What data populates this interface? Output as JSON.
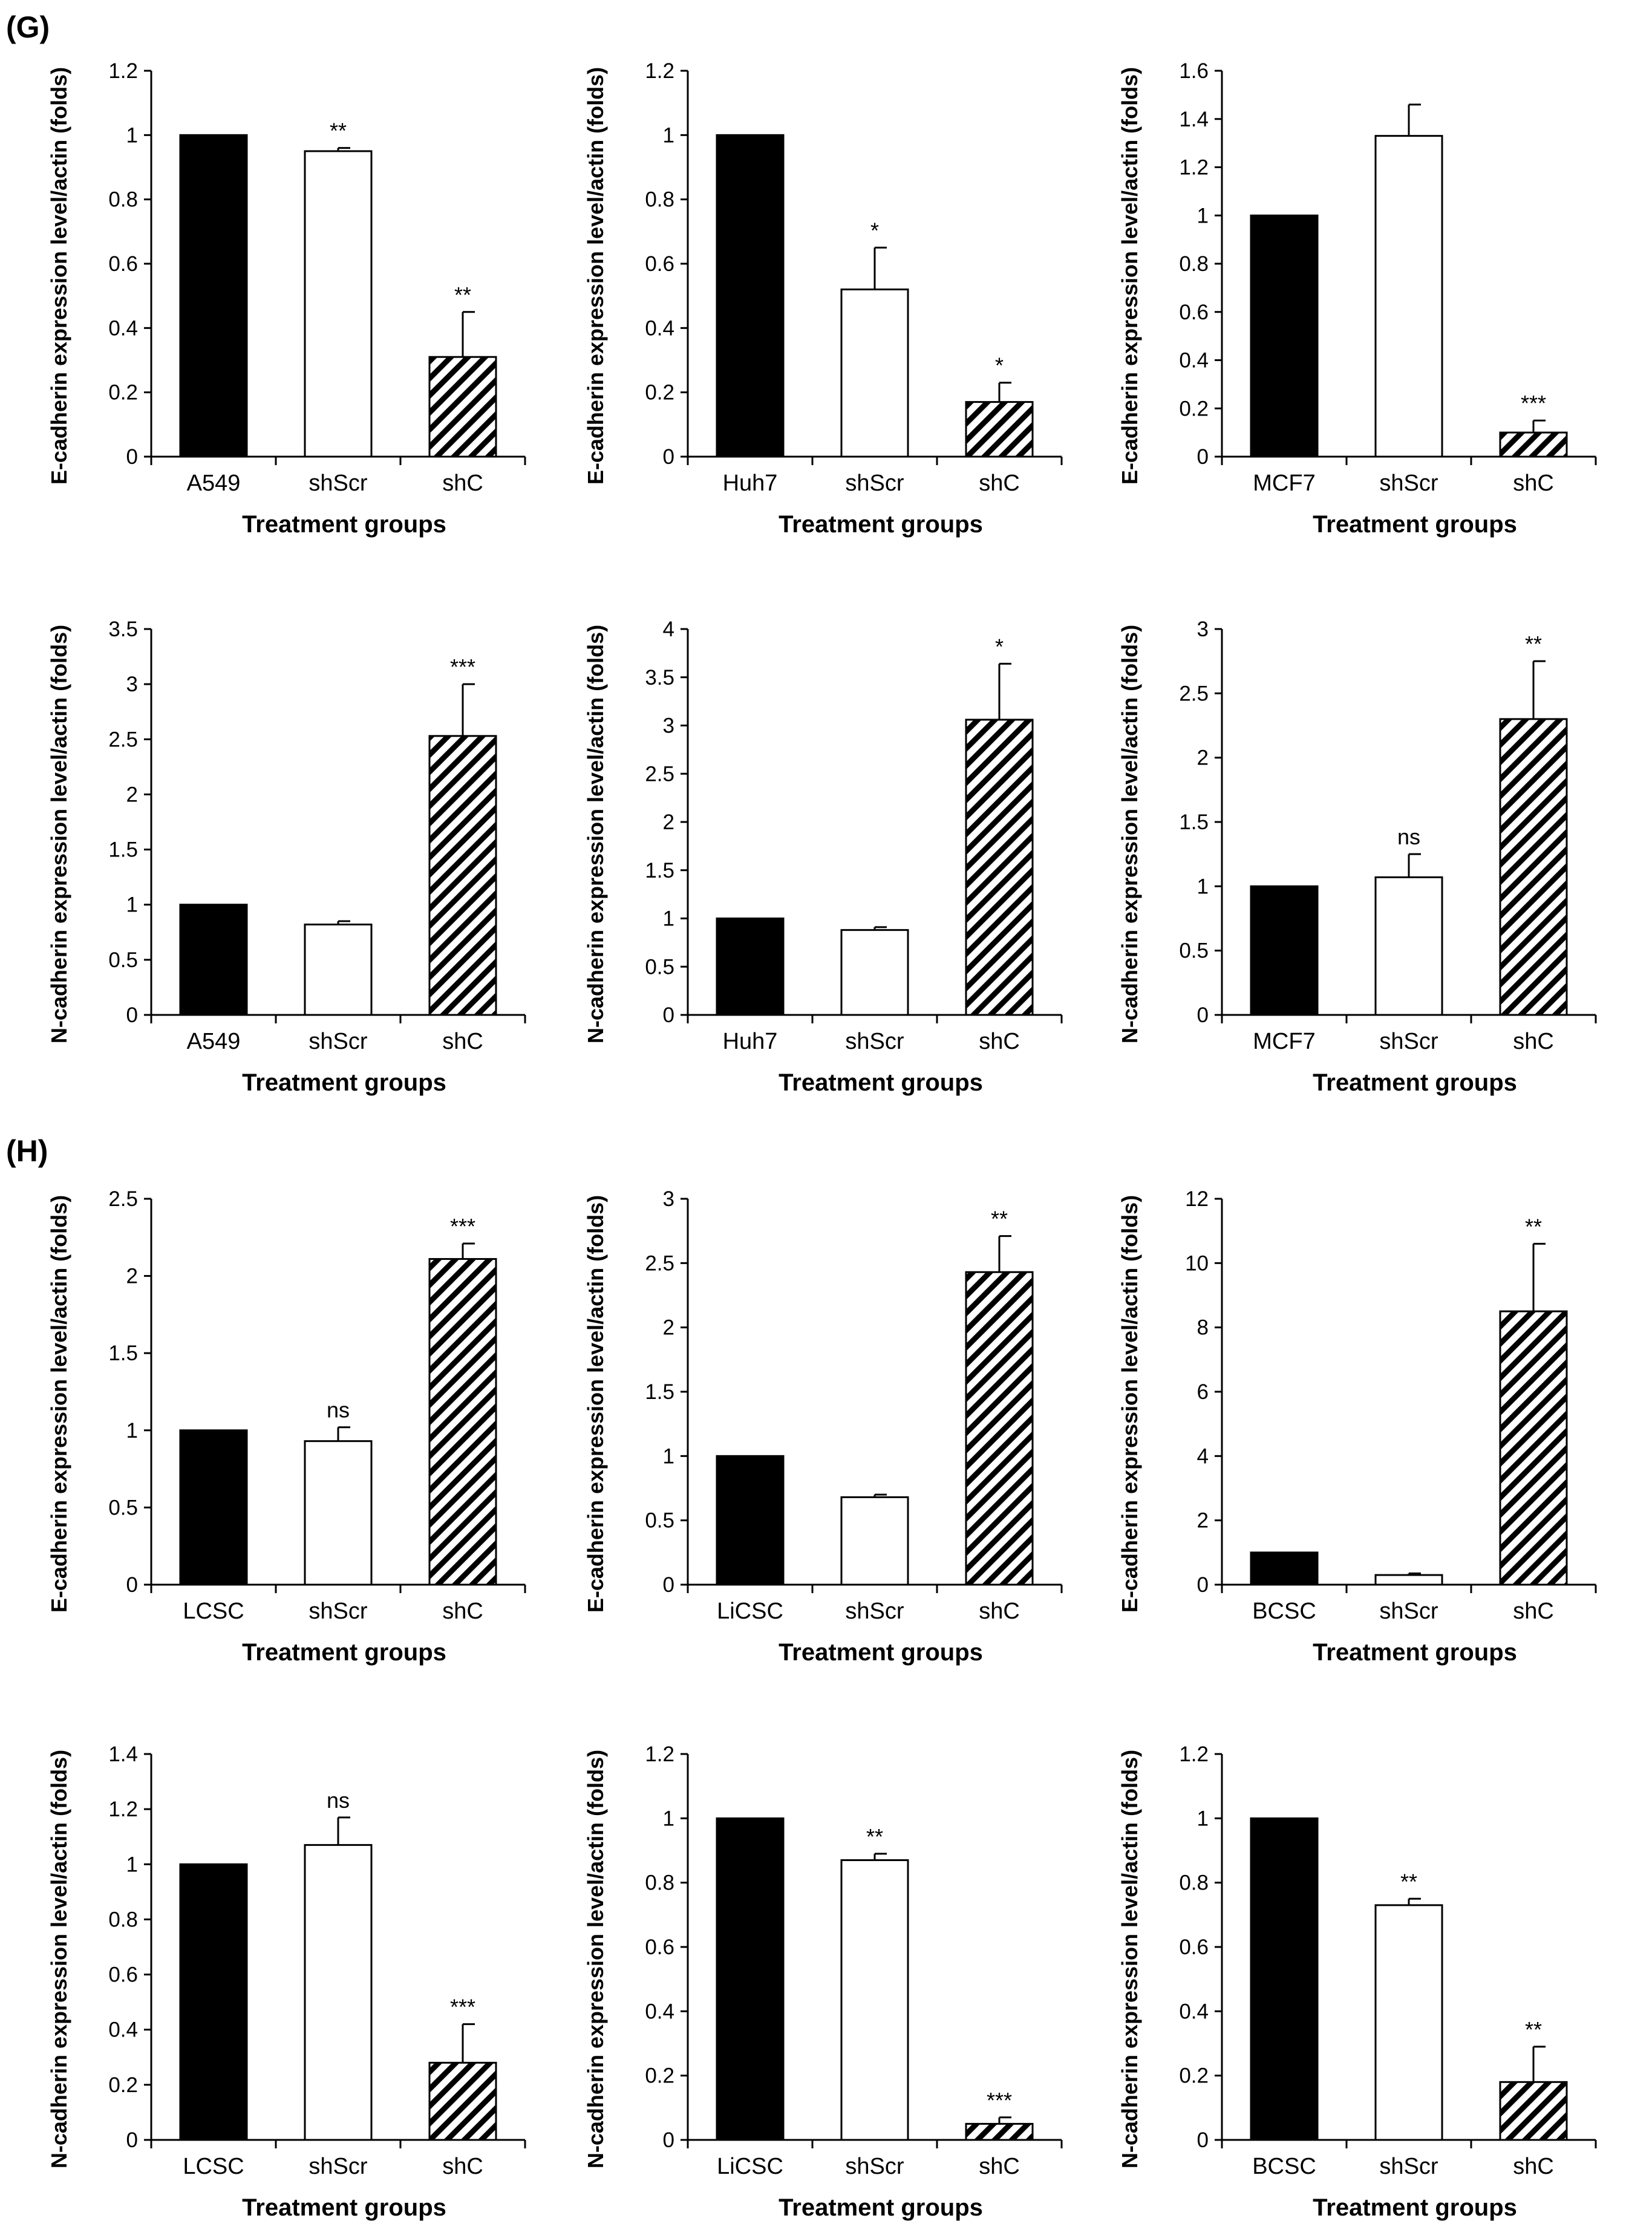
{
  "panel_labels": {
    "G": "(G)",
    "H": "(H)"
  },
  "colors": {
    "control": "#000000",
    "shScr": "#ffffff",
    "shC_stripe": "#000000",
    "axis": "#000000"
  },
  "chart_data": [
    {
      "type": "bar",
      "panel": "G",
      "title": "",
      "xlabel": "Treatment groups",
      "ylabel": "E-cadherin expression level/actin (folds)",
      "categories": [
        "A549",
        "shScr",
        "shC"
      ],
      "values": [
        1,
        0.95,
        0.31
      ],
      "errors": [
        0,
        0.01,
        0.14
      ],
      "significance": [
        "",
        "**",
        "**"
      ],
      "ylim": [
        0,
        1.2
      ],
      "yticks": [
        "0",
        "0.2",
        "0.4",
        "0.6",
        "0.8",
        "1",
        "1.2"
      ]
    },
    {
      "type": "bar",
      "panel": "G",
      "title": "",
      "xlabel": "Treatment groups",
      "ylabel": "E-cadherin expression level/actin (folds)",
      "categories": [
        "Huh7",
        "shScr",
        "shC"
      ],
      "values": [
        1,
        0.52,
        0.17
      ],
      "errors": [
        0,
        0.13,
        0.06
      ],
      "significance": [
        "",
        "*",
        "*"
      ],
      "ylim": [
        0,
        1.2
      ],
      "yticks": [
        "0",
        "0.2",
        "0.4",
        "0.6",
        "0.8",
        "1",
        "1.2"
      ]
    },
    {
      "type": "bar",
      "panel": "G",
      "title": "",
      "xlabel": "Treatment groups",
      "ylabel": "E-cadherin expression level/actin (folds)",
      "categories": [
        "MCF7",
        "shScr",
        "shC"
      ],
      "values": [
        1,
        1.33,
        0.1
      ],
      "errors": [
        0,
        0.13,
        0.05
      ],
      "significance": [
        "",
        "",
        "***"
      ],
      "ylim": [
        0,
        1.6
      ],
      "yticks": [
        "0",
        "0.2",
        "0.4",
        "0.6",
        "0.8",
        "1",
        "1.2",
        "1.4",
        "1.6"
      ]
    },
    {
      "type": "bar",
      "panel": "G",
      "title": "",
      "xlabel": "Treatment groups",
      "ylabel": "N-cadherin expression level/actin (folds)",
      "categories": [
        "A549",
        "shScr",
        "shC"
      ],
      "values": [
        1,
        0.82,
        2.53
      ],
      "errors": [
        0,
        0.03,
        0.47
      ],
      "significance": [
        "",
        "",
        "***"
      ],
      "ylim": [
        0,
        3.5
      ],
      "yticks": [
        "0",
        "0.5",
        "1",
        "1.5",
        "2",
        "2.5",
        "3",
        "3.5"
      ]
    },
    {
      "type": "bar",
      "panel": "G",
      "title": "",
      "xlabel": "Treatment groups",
      "ylabel": "N-cadherin expression level/actin (folds)",
      "categories": [
        "Huh7",
        "shScr",
        "shC"
      ],
      "values": [
        1,
        0.88,
        3.06
      ],
      "errors": [
        0,
        0.03,
        0.58
      ],
      "significance": [
        "",
        "",
        "*"
      ],
      "ylim": [
        0,
        4
      ],
      "yticks": [
        "0",
        "0.5",
        "1",
        "1.5",
        "2",
        "2.5",
        "3",
        "3.5",
        "4"
      ]
    },
    {
      "type": "bar",
      "panel": "G",
      "title": "",
      "xlabel": "Treatment groups",
      "ylabel": "N-cadherin expression level/actin (folds)",
      "categories": [
        "MCF7",
        "shScr",
        "shC"
      ],
      "values": [
        1,
        1.07,
        2.3
      ],
      "errors": [
        0,
        0.18,
        0.45
      ],
      "significance": [
        "",
        "ns",
        "**"
      ],
      "ylim": [
        0,
        3
      ],
      "yticks": [
        "0",
        "0.5",
        "1",
        "1.5",
        "2",
        "2.5",
        "3"
      ]
    },
    {
      "type": "bar",
      "panel": "H",
      "title": "",
      "xlabel": "Treatment groups",
      "ylabel": "E-cadherin expression level/actin (folds)",
      "categories": [
        "LCSC",
        "shScr",
        "shC"
      ],
      "values": [
        1,
        0.93,
        2.11
      ],
      "errors": [
        0,
        0.09,
        0.1
      ],
      "significance": [
        "",
        "ns",
        "***"
      ],
      "ylim": [
        0,
        2.5
      ],
      "yticks": [
        "0",
        "0.5",
        "1",
        "1.5",
        "2",
        "2.5"
      ]
    },
    {
      "type": "bar",
      "panel": "H",
      "title": "",
      "xlabel": "Treatment groups",
      "ylabel": "E-cadherin expression level/actin (folds)",
      "categories": [
        "LiCSC",
        "shScr",
        "shC"
      ],
      "values": [
        1,
        0.68,
        2.43
      ],
      "errors": [
        0,
        0.02,
        0.28
      ],
      "significance": [
        "",
        "",
        "**"
      ],
      "ylim": [
        0,
        3
      ],
      "yticks": [
        "0",
        "0.5",
        "1",
        "1.5",
        "2",
        "2.5",
        "3"
      ]
    },
    {
      "type": "bar",
      "panel": "H",
      "title": "",
      "xlabel": "Treatment groups",
      "ylabel": "E-cadherin expression level/actin (folds)",
      "categories": [
        "BCSC",
        "shScr",
        "shC"
      ],
      "values": [
        1,
        0.3,
        8.5
      ],
      "errors": [
        0,
        0.05,
        2.1
      ],
      "significance": [
        "",
        "",
        "**"
      ],
      "ylim": [
        0,
        12
      ],
      "yticks": [
        "0",
        "2",
        "4",
        "6",
        "8",
        "10",
        "12"
      ]
    },
    {
      "type": "bar",
      "panel": "H",
      "title": "",
      "xlabel": "Treatment groups",
      "ylabel": "N-cadherin expression level/actin (folds)",
      "categories": [
        "LCSC",
        "shScr",
        "shC"
      ],
      "values": [
        1,
        1.07,
        0.28
      ],
      "errors": [
        0,
        0.1,
        0.14
      ],
      "significance": [
        "",
        "ns",
        "***"
      ],
      "ylim": [
        0,
        1.4
      ],
      "yticks": [
        "0",
        "0.2",
        "0.4",
        "0.6",
        "0.8",
        "1",
        "1.2",
        "1.4"
      ]
    },
    {
      "type": "bar",
      "panel": "H",
      "title": "",
      "xlabel": "Treatment groups",
      "ylabel": "N-cadherin expression level/actin (folds)",
      "categories": [
        "LiCSC",
        "shScr",
        "shC"
      ],
      "values": [
        1,
        0.87,
        0.05
      ],
      "errors": [
        0,
        0.02,
        0.02
      ],
      "significance": [
        "",
        "**",
        "***"
      ],
      "ylim": [
        0,
        1.2
      ],
      "yticks": [
        "0",
        "0.2",
        "0.4",
        "0.6",
        "0.8",
        "1",
        "1.2"
      ]
    },
    {
      "type": "bar",
      "panel": "H",
      "title": "",
      "xlabel": "Treatment groups",
      "ylabel": "N-cadherin expression level/actin (folds)",
      "categories": [
        "BCSC",
        "shScr",
        "shC"
      ],
      "values": [
        1,
        0.73,
        0.18
      ],
      "errors": [
        0,
        0.02,
        0.11
      ],
      "significance": [
        "",
        "**",
        "**"
      ],
      "ylim": [
        0,
        1.2
      ],
      "yticks": [
        "0",
        "0.2",
        "0.4",
        "0.6",
        "0.8",
        "1",
        "1.2"
      ]
    }
  ]
}
